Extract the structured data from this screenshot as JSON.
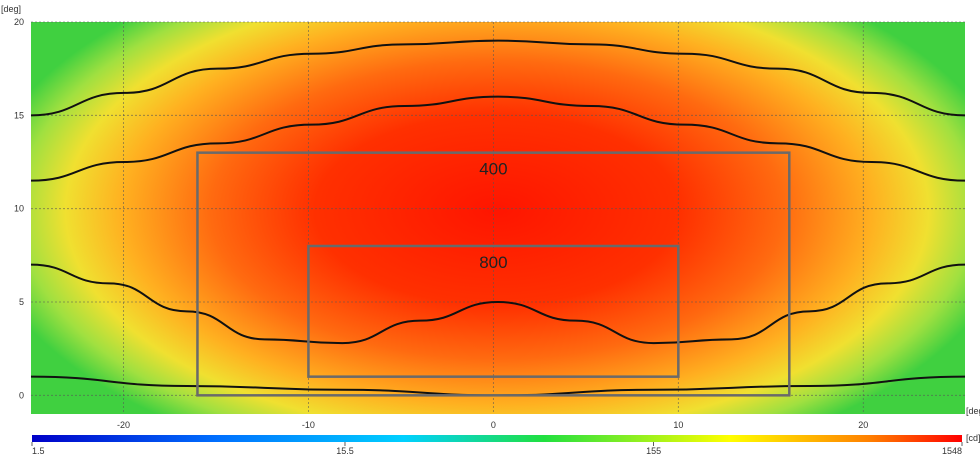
{
  "chart_data": {
    "type": "heatmap",
    "x_unit": "[deg]",
    "y_unit": "[deg]",
    "xlim": [
      -25,
      25.5
    ],
    "ylim": [
      -1,
      20
    ],
    "x_ticks": [
      -20,
      -10,
      0,
      10,
      20
    ],
    "y_ticks": [
      0,
      5,
      10,
      15,
      20
    ],
    "grid": true,
    "peak": {
      "x": 0,
      "y": 10
    },
    "colorbar": {
      "unit": "[cd]",
      "scale": "log",
      "range": [
        1.5,
        1548
      ],
      "tick_labels": [
        "1.5",
        "15.5",
        "155",
        "1548"
      ],
      "colors": [
        "#0000c8",
        "#00c8ff",
        "#00e000",
        "#ffff00",
        "#ff8000",
        "#ff0000"
      ]
    },
    "contours": [
      {
        "y": [
          1.0,
          0.5,
          0.3,
          0.0,
          0.3,
          0.5,
          1.0
        ]
      },
      {
        "y": [
          7.0,
          6.0,
          4.5,
          3.0,
          2.8,
          4.0,
          5.0,
          4.0,
          2.8,
          3.0,
          4.5,
          6.0,
          7.0
        ]
      },
      {
        "y": [
          11.5,
          12.5,
          13.5,
          14.5,
          15.5,
          16.0,
          15.5,
          14.5,
          13.5,
          12.5,
          11.5
        ]
      },
      {
        "y": [
          15.0,
          16.2,
          17.5,
          18.3,
          18.8,
          19.0,
          18.8,
          18.3,
          17.5,
          16.2,
          15.0
        ]
      }
    ],
    "regions": [
      {
        "label": "400",
        "x": [
          -16,
          16
        ],
        "y": [
          0,
          13
        ]
      },
      {
        "label": "800",
        "x": [
          -10,
          10
        ],
        "y": [
          1,
          8
        ]
      }
    ]
  }
}
